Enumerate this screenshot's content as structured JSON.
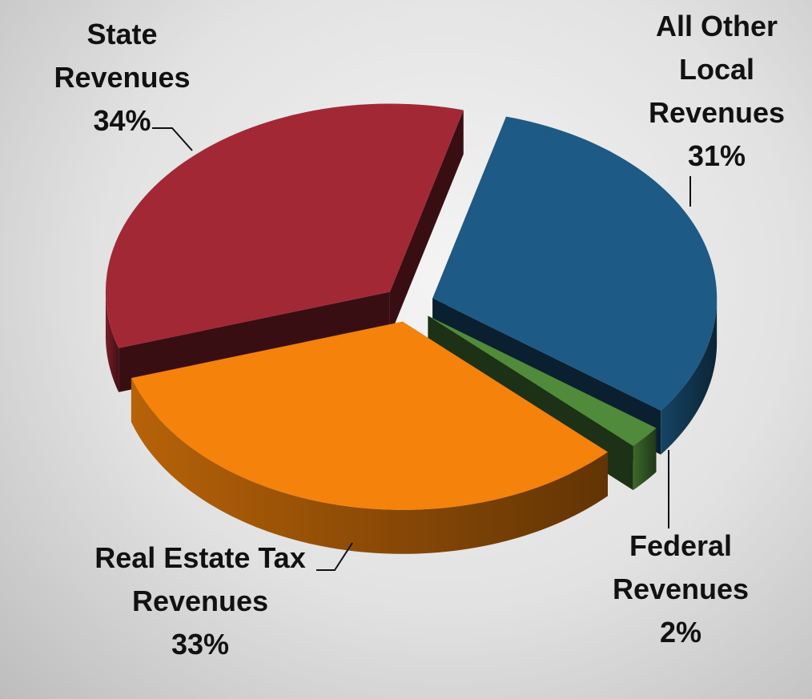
{
  "chart_data": {
    "type": "pie",
    "categories": [
      "All Other Local Revenues",
      "Federal Revenues",
      "Real Estate Tax Revenues",
      "State Revenues"
    ],
    "values": [
      31,
      2,
      33,
      34
    ],
    "value_labels": [
      "31%",
      "2%",
      "33%",
      "34%"
    ],
    "colors": [
      "#1d5a85",
      "#4f8b3b",
      "#f4820b",
      "#a32835"
    ]
  }
}
